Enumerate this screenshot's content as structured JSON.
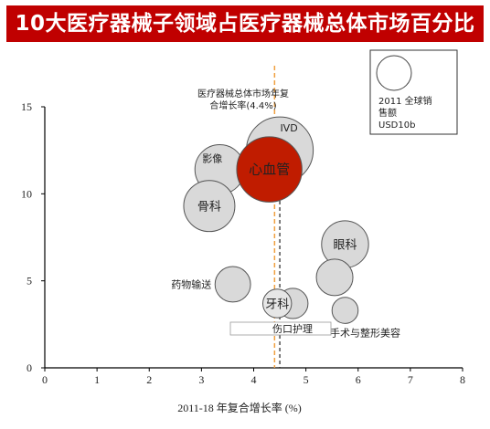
{
  "title": "10大医疗器械子领域占医疗器械总体市场百分比",
  "chart_data": {
    "type": "bubble",
    "xlabel": "2011-18 年复合增长率 (%)",
    "ylabel": "",
    "xlim": [
      0,
      8
    ],
    "ylim": [
      0,
      15
    ],
    "x_ticks": [
      "0",
      "1",
      "2",
      "3",
      "4",
      "5",
      "6",
      "7",
      "8"
    ],
    "y_ticks": [
      "0",
      "5",
      "10",
      "15"
    ],
    "bubble_size_unit": "2011 全球销售额 USD10b",
    "market_cagr": 4.4,
    "market_cagr_label": [
      "医疗器械总体市场年复",
      "合增长率(4.4%)"
    ],
    "reference_line_x": 4.5,
    "bubbles": [
      {
        "name": "IVD",
        "x": 4.5,
        "y": 12.5,
        "size": 1.28,
        "color": "#d9d9d9",
        "label_pos": "top"
      },
      {
        "name": "影像",
        "x": 3.35,
        "y": 11.4,
        "size": 0.95,
        "color": "#d9d9d9",
        "label_pos": "left-inside"
      },
      {
        "name": "心血管",
        "x": 4.3,
        "y": 11.4,
        "size": 1.25,
        "color": "#c01c00",
        "label_pos": "center",
        "label_color": "#ffffff"
      },
      {
        "name": "骨科",
        "x": 3.15,
        "y": 9.3,
        "size": 0.98,
        "color": "#d9d9d9",
        "label_pos": "center"
      },
      {
        "name": "眼科",
        "x": 5.75,
        "y": 7.1,
        "size": 0.9,
        "color": "#d9d9d9",
        "label_pos": "center"
      },
      {
        "name": "",
        "x": 5.55,
        "y": 5.2,
        "size": 0.7,
        "color": "#d9d9d9",
        "label_pos": "none"
      },
      {
        "name": "药物输送",
        "x": 3.6,
        "y": 4.8,
        "size": 0.68,
        "color": "#d9d9d9",
        "label_pos": "left-outside"
      },
      {
        "name": "",
        "x": 4.75,
        "y": 3.7,
        "size": 0.58,
        "color": "#d9d9d9",
        "label_pos": "none"
      },
      {
        "name": "牙科",
        "x": 4.45,
        "y": 3.7,
        "size": 0.55,
        "color": "#e6e6e6",
        "label_pos": "center"
      },
      {
        "name": "手术与整形美容",
        "x": 5.75,
        "y": 3.3,
        "size": 0.5,
        "color": "#d9d9d9",
        "label_pos": "below"
      },
      {
        "name": "伤口护理",
        "x": 4.5,
        "y": 2.2,
        "size": 0,
        "color": "#ffffff",
        "label_pos": "box"
      }
    ]
  },
  "legend": {
    "lines": [
      "2011 全球销",
      "售额",
      "USD10b"
    ]
  },
  "colors": {
    "title_bg": "#c00000",
    "market_line": "#f0a040",
    "reference_line": "#333333"
  }
}
